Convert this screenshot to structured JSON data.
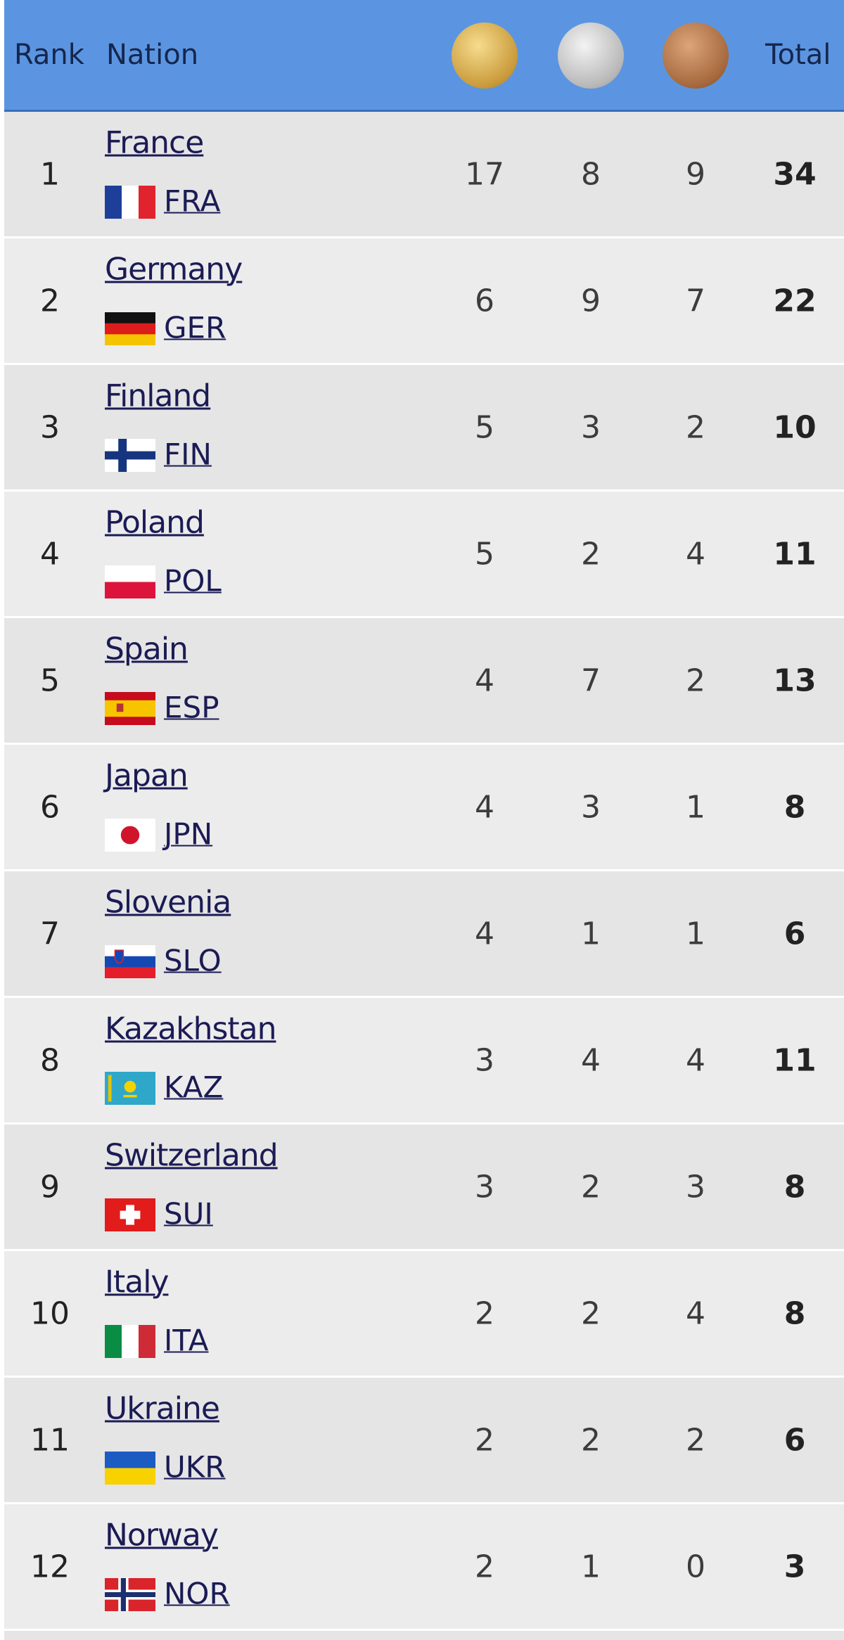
{
  "header": {
    "rank": "Rank",
    "nation": "Nation",
    "total": "Total"
  },
  "rows": [
    {
      "rank": 1,
      "nation": "France",
      "code": "FRA",
      "gold": 17,
      "silver": 8,
      "bronze": 9,
      "total": 34
    },
    {
      "rank": 2,
      "nation": "Germany",
      "code": "GER",
      "gold": 6,
      "silver": 9,
      "bronze": 7,
      "total": 22
    },
    {
      "rank": 3,
      "nation": "Finland",
      "code": "FIN",
      "gold": 5,
      "silver": 3,
      "bronze": 2,
      "total": 10
    },
    {
      "rank": 4,
      "nation": "Poland",
      "code": "POL",
      "gold": 5,
      "silver": 2,
      "bronze": 4,
      "total": 11
    },
    {
      "rank": 5,
      "nation": "Spain",
      "code": "ESP",
      "gold": 4,
      "silver": 7,
      "bronze": 2,
      "total": 13
    },
    {
      "rank": 6,
      "nation": "Japan",
      "code": "JPN",
      "gold": 4,
      "silver": 3,
      "bronze": 1,
      "total": 8
    },
    {
      "rank": 7,
      "nation": "Slovenia",
      "code": "SLO",
      "gold": 4,
      "silver": 1,
      "bronze": 1,
      "total": 6
    },
    {
      "rank": 8,
      "nation": "Kazakhstan",
      "code": "KAZ",
      "gold": 3,
      "silver": 4,
      "bronze": 4,
      "total": 11
    },
    {
      "rank": 9,
      "nation": "Switzerland",
      "code": "SUI",
      "gold": 3,
      "silver": 2,
      "bronze": 3,
      "total": 8
    },
    {
      "rank": 10,
      "nation": "Italy",
      "code": "ITA",
      "gold": 2,
      "silver": 2,
      "bronze": 4,
      "total": 8
    },
    {
      "rank": 11,
      "nation": "Ukraine",
      "code": "UKR",
      "gold": 2,
      "silver": 2,
      "bronze": 2,
      "total": 6
    },
    {
      "rank": 12,
      "nation": "Norway",
      "code": "NOR",
      "gold": 2,
      "silver": 1,
      "bronze": 0,
      "total": 3
    }
  ]
}
